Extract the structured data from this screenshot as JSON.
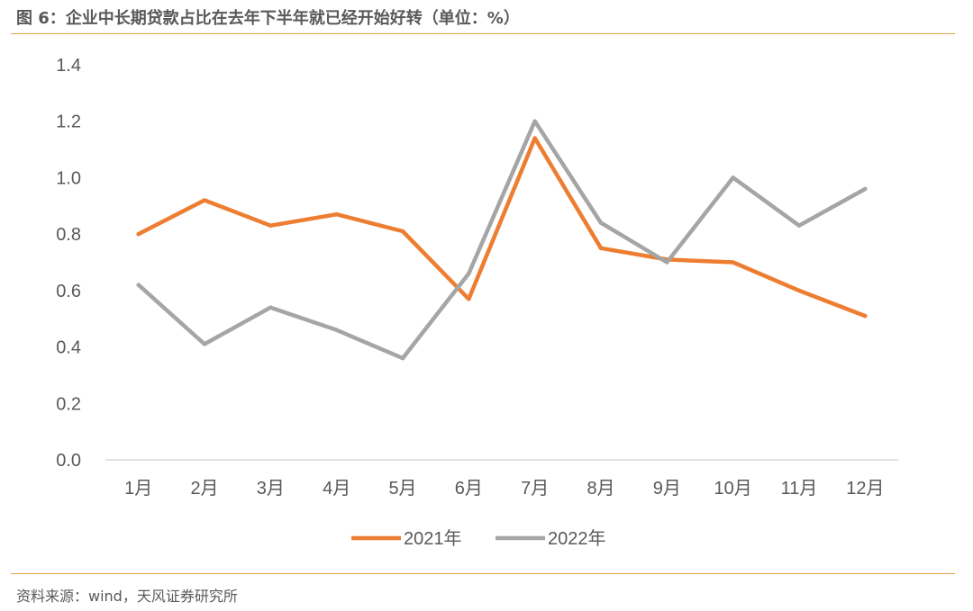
{
  "header": {
    "title": "图 6：企业中长期贷款占比在去年下半年就已经开始好转（单位：%）"
  },
  "footer": {
    "source": "资料来源：wind，天风证券研究所"
  },
  "colors": {
    "accent_rule": "#E0A243",
    "series_2021": "#ED7D31",
    "series_2022": "#A5A5A5",
    "axis_text": "#595959",
    "axis_line": "#D9D9D9"
  },
  "chart_data": {
    "type": "line",
    "title": "",
    "xlabel": "",
    "ylabel": "",
    "categories": [
      "1月",
      "2月",
      "3月",
      "4月",
      "5月",
      "6月",
      "7月",
      "8月",
      "9月",
      "10月",
      "11月",
      "12月"
    ],
    "ylim": [
      0.0,
      1.4
    ],
    "yticks": [
      "0.0",
      "0.2",
      "0.4",
      "0.6",
      "0.8",
      "1.0",
      "1.2",
      "1.4"
    ],
    "grid": false,
    "legend_position": "bottom",
    "series": [
      {
        "name": "2021年",
        "values": [
          0.8,
          0.92,
          0.83,
          0.87,
          0.81,
          0.57,
          1.14,
          0.75,
          0.71,
          0.7,
          0.6,
          0.51
        ]
      },
      {
        "name": "2022年",
        "values": [
          0.62,
          0.41,
          0.54,
          0.46,
          0.36,
          0.66,
          1.2,
          0.84,
          0.7,
          1.0,
          0.83,
          0.96
        ]
      }
    ]
  }
}
